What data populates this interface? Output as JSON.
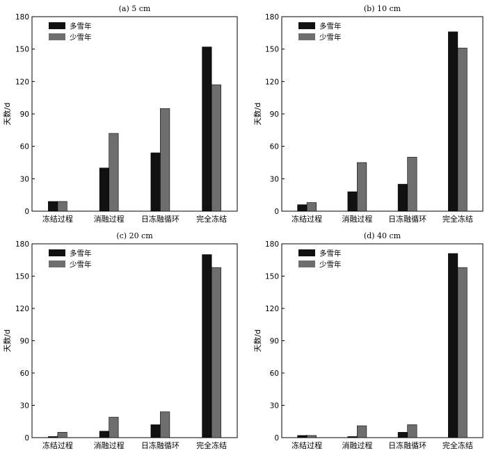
{
  "chart_data": [
    {
      "type": "bar",
      "title": "(a) 5 cm",
      "ylabel": "天数/d",
      "ylim": [
        0,
        180
      ],
      "yticks": [
        "0",
        "30",
        "60",
        "90",
        "120",
        "150",
        "180"
      ],
      "categories": [
        "冻结过程",
        "消融过程",
        "日冻融循环",
        "完全冻结"
      ],
      "series": [
        {
          "name": "多雪年",
          "color": "#111111",
          "values": [
            9,
            40,
            54,
            152
          ]
        },
        {
          "name": "少雪年",
          "color": "#6e6e6e",
          "values": [
            9,
            72,
            95,
            117
          ]
        }
      ],
      "legend": "top-left"
    },
    {
      "type": "bar",
      "title": "(b) 10 cm",
      "ylabel": "天数/d",
      "ylim": [
        0,
        180
      ],
      "yticks": [
        "0",
        "30",
        "60",
        "90",
        "120",
        "150",
        "180"
      ],
      "categories": [
        "冻结过程",
        "消融过程",
        "日冻融循环",
        "完全冻结"
      ],
      "series": [
        {
          "name": "多雪年",
          "color": "#111111",
          "values": [
            6,
            18,
            25,
            166
          ]
        },
        {
          "name": "少雪年",
          "color": "#6e6e6e",
          "values": [
            8,
            45,
            50,
            151
          ]
        }
      ],
      "legend": "top-left"
    },
    {
      "type": "bar",
      "title": "(c) 20 cm",
      "ylabel": "天数/d",
      "ylim": [
        0,
        180
      ],
      "yticks": [
        "0",
        "30",
        "60",
        "90",
        "120",
        "150",
        "180"
      ],
      "categories": [
        "冻结过程",
        "消融过程",
        "日冻融循环",
        "完全冻结"
      ],
      "series": [
        {
          "name": "多雪年",
          "color": "#111111",
          "values": [
            1,
            6,
            12,
            170
          ]
        },
        {
          "name": "少雪年",
          "color": "#6e6e6e",
          "values": [
            5,
            19,
            24,
            158
          ]
        }
      ],
      "legend": "top-left"
    },
    {
      "type": "bar",
      "title": "(d) 40 cm",
      "ylabel": "天数/d",
      "ylim": [
        0,
        180
      ],
      "yticks": [
        "0",
        "30",
        "60",
        "90",
        "120",
        "150",
        "180"
      ],
      "categories": [
        "冻结过程",
        "消融过程",
        "日冻融循环",
        "完全冻结"
      ],
      "series": [
        {
          "name": "多雪年",
          "color": "#111111",
          "values": [
            2,
            1,
            5,
            171
          ]
        },
        {
          "name": "少雪年",
          "color": "#6e6e6e",
          "values": [
            2,
            11,
            12,
            158
          ]
        }
      ],
      "legend": "top-left"
    }
  ]
}
